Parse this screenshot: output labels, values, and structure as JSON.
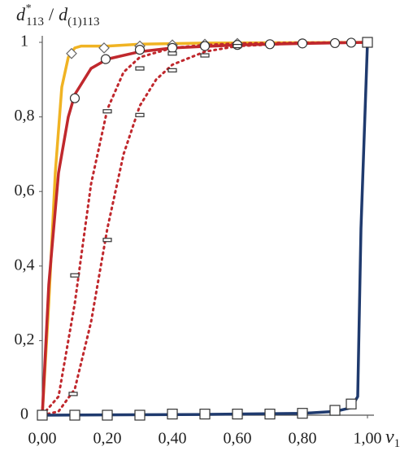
{
  "chart_data": {
    "type": "line",
    "ylabel": {
      "base": "d",
      "sup": "*",
      "sub": "113",
      "sep": "/",
      "base2": "d",
      "sub2": "(1)113"
    },
    "xlabel": {
      "base": "v",
      "sub": "1"
    },
    "xlim": [
      0,
      1
    ],
    "xticks": [
      {
        "value": 0,
        "label": "0,00"
      },
      {
        "value": 0.2,
        "label": "0,20"
      },
      {
        "value": 0.4,
        "label": "0,40"
      },
      {
        "value": 0.6,
        "label": "0,60"
      },
      {
        "value": 0.8,
        "label": "0,80"
      },
      {
        "value": 1,
        "label": "1,00"
      }
    ],
    "ylim": [
      0,
      1
    ],
    "yticks": [
      0,
      {
        "value": 0.2,
        "label": "0,2"
      },
      {
        "value": 0.4,
        "label": "0,4"
      },
      {
        "value": 0.6,
        "label": "0,6"
      },
      {
        "value": 0.8,
        "label": "0,8"
      },
      1
    ],
    "series": [
      {
        "color": "#f0b323",
        "style": "solid",
        "x": [
          0,
          0.02,
          0.04,
          0.06,
          0.08,
          0.1,
          0.12,
          0.15,
          0.2,
          0.3,
          0.5,
          1
        ],
        "values": [
          0,
          0.3,
          0.65,
          0.88,
          0.96,
          0.985,
          0.99,
          0.99,
          0.99,
          0.995,
          0.998,
          1
        ]
      },
      {
        "color": "#c0282d",
        "style": "solid",
        "x": [
          0,
          0.02,
          0.05,
          0.08,
          0.1,
          0.15,
          0.2,
          0.3,
          0.4,
          0.6,
          0.8,
          1
        ],
        "values": [
          0,
          0.35,
          0.65,
          0.8,
          0.86,
          0.93,
          0.955,
          0.975,
          0.985,
          0.993,
          0.997,
          1
        ]
      },
      {
        "color": "#c0282d",
        "style": "dotted",
        "x": [
          0,
          0.05,
          0.1,
          0.15,
          0.2,
          0.25,
          0.3,
          0.4,
          0.5,
          0.6,
          0.8,
          1
        ],
        "values": [
          0,
          0.05,
          0.3,
          0.62,
          0.82,
          0.92,
          0.96,
          0.985,
          0.993,
          0.997,
          0.999,
          1
        ]
      },
      {
        "color": "#c0282d",
        "style": "dotted",
        "x": [
          0,
          0.05,
          0.1,
          0.15,
          0.2,
          0.25,
          0.3,
          0.35,
          0.4,
          0.5,
          0.6,
          0.8,
          1
        ],
        "values": [
          0,
          0.01,
          0.07,
          0.25,
          0.5,
          0.7,
          0.83,
          0.9,
          0.94,
          0.975,
          0.99,
          0.998,
          1
        ]
      },
      {
        "color": "#1f3a6e",
        "style": "solid",
        "x": [
          0,
          0.5,
          0.8,
          0.9,
          0.95,
          0.97,
          0.98,
          1
        ],
        "values": [
          0,
          0.002,
          0.005,
          0.01,
          0.02,
          0.05,
          0.5,
          1
        ]
      },
      {
        "color": "#666666",
        "marker": "diamond",
        "x": [
          0.09,
          0.19,
          0.3,
          0.4,
          0.5,
          0.6
        ],
        "values": [
          0.97,
          0.985,
          0.99,
          0.993,
          0.995,
          0.997
        ]
      },
      {
        "color": "#333333",
        "marker": "circle",
        "x": [
          0.1,
          0.195,
          0.3,
          0.4,
          0.5,
          0.6,
          0.7,
          0.8,
          0.9,
          0.95
        ],
        "values": [
          0.85,
          0.955,
          0.98,
          0.985,
          0.99,
          0.993,
          0.995,
          0.997,
          0.998,
          0.999
        ]
      },
      {
        "color": "#333333",
        "marker": "dash",
        "x": [
          0.095,
          0.1,
          0.2,
          0.2,
          0.3,
          0.3,
          0.4,
          0.4,
          0.5,
          0.6
        ],
        "values": [
          0.057,
          0.375,
          0.47,
          0.815,
          0.805,
          0.93,
          0.925,
          0.97,
          0.965,
          0.99
        ]
      },
      {
        "color": "#333333",
        "marker": "square",
        "x": [
          0,
          0.1,
          0.2,
          0.3,
          0.4,
          0.5,
          0.6,
          0.7,
          0.8,
          0.9,
          0.95,
          1
        ],
        "values": [
          0,
          0,
          0,
          0,
          0.003,
          0.003,
          0.003,
          0.003,
          0.005,
          0.013,
          0.03,
          1
        ]
      }
    ]
  }
}
